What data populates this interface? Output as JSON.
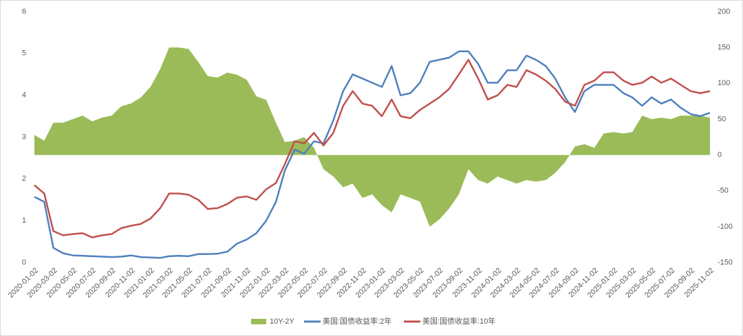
{
  "chart_data": {
    "type": "line",
    "x": [
      "2020-01-02",
      "2020-02-02",
      "2020-03-02",
      "2020-04-02",
      "2020-05-02",
      "2020-06-02",
      "2020-07-02",
      "2020-08-02",
      "2020-09-02",
      "2020-10-02",
      "2020-11-02",
      "2020-12-02",
      "2021-01-02",
      "2021-02-02",
      "2021-03-02",
      "2021-04-02",
      "2021-05-02",
      "2021-06-02",
      "2021-07-02",
      "2021-08-02",
      "2021-09-02",
      "2021-10-02",
      "2021-11-02",
      "2021-12-02",
      "2022-01-02",
      "2022-02-02",
      "2022-03-02",
      "2022-04-02",
      "2022-05-02",
      "2022-06-02",
      "2022-07-02",
      "2022-08-02",
      "2022-09-02",
      "2022-10-02",
      "2022-11-02",
      "2022-12-02",
      "2023-01-02",
      "2023-02-02",
      "2023-03-02",
      "2023-04-02",
      "2023-05-02",
      "2023-06-02",
      "2023-07-02",
      "2023-08-02",
      "2023-09-02",
      "2023-10-02",
      "2023-11-02",
      "2023-12-02",
      "2024-01-02",
      "2024-02-02",
      "2024-03-02",
      "2024-04-02",
      "2024-05-02",
      "2024-06-02",
      "2024-07-02",
      "2024-08-02",
      "2024-09-02",
      "2024-10-02",
      "2024-11-02",
      "2024-12-02",
      "2025-01-02",
      "2025-02-02",
      "2025-03-02",
      "2025-04-02",
      "2025-05-02",
      "2025-06-02",
      "2025-07-02",
      "2025-08-02",
      "2025-09-02",
      "2025-10-02",
      "2025-11-02"
    ],
    "xlim": [
      "2020-01-02",
      "2025-11-02"
    ],
    "xticks": [
      "2020-01-02",
      "2020-03-02",
      "2020-05-02",
      "2020-07-02",
      "2020-09-02",
      "2020-11-02",
      "2021-01-02",
      "2021-03-02",
      "2021-05-02",
      "2021-07-02",
      "2021-09-02",
      "2021-11-02",
      "2022-01-02",
      "2022-03-02",
      "2022-05-02",
      "2022-07-02",
      "2022-09-02",
      "2022-11-02",
      "2023-01-02",
      "2023-03-02",
      "2023-05-02",
      "2023-07-02",
      "2023-09-02",
      "2023-11-02",
      "2024-01-02",
      "2024-03-02",
      "2024-05-02",
      "2024-07-02",
      "2024-09-02",
      "2024-11-02",
      "2025-01-02",
      "2025-03-02",
      "2025-05-02",
      "2025-07-02",
      "2025-09-02",
      "2025-11-02"
    ],
    "ylim": [
      0,
      6
    ],
    "yticks": [
      0,
      1,
      2,
      3,
      4,
      5,
      6
    ],
    "y2lim": [
      -150,
      200
    ],
    "y2ticks": [
      -150,
      -100,
      -50,
      0,
      50,
      100,
      150,
      200
    ],
    "series": [
      {
        "name": "10Y-2Y",
        "type": "area",
        "axis": "y2",
        "color": "#9bbb59",
        "values": [
          28,
          20,
          45,
          45,
          50,
          55,
          47,
          52,
          55,
          68,
          72,
          80,
          95,
          120,
          150,
          150,
          148,
          130,
          110,
          108,
          115,
          112,
          105,
          82,
          77,
          45,
          18,
          20,
          25,
          10,
          -20,
          -30,
          -45,
          -40,
          -60,
          -55,
          -70,
          -80,
          -55,
          -60,
          -65,
          -100,
          -90,
          -75,
          -55,
          -20,
          -35,
          -40,
          -30,
          -35,
          -40,
          -35,
          -37,
          -35,
          -25,
          -10,
          12,
          15,
          10,
          30,
          32,
          30,
          32,
          55,
          50,
          52,
          50,
          55,
          55,
          55,
          52
        ]
      },
      {
        "name": "美国:国债收益率:2年",
        "color": "#4f81bd",
        "values": [
          1.57,
          1.45,
          0.35,
          0.22,
          0.17,
          0.16,
          0.15,
          0.14,
          0.13,
          0.14,
          0.17,
          0.13,
          0.12,
          0.11,
          0.15,
          0.16,
          0.15,
          0.2,
          0.2,
          0.21,
          0.26,
          0.45,
          0.55,
          0.7,
          1.0,
          1.45,
          2.2,
          2.7,
          2.6,
          2.9,
          2.85,
          3.4,
          4.1,
          4.5,
          4.4,
          4.3,
          4.2,
          4.7,
          4.0,
          4.05,
          4.3,
          4.8,
          4.85,
          4.9,
          5.05,
          5.05,
          4.75,
          4.3,
          4.3,
          4.6,
          4.6,
          4.95,
          4.85,
          4.7,
          4.4,
          3.95,
          3.6,
          4.1,
          4.25,
          4.25,
          4.25,
          4.05,
          3.95,
          3.75,
          3.95,
          3.8,
          3.9,
          3.7,
          3.55,
          3.5,
          3.58
        ]
      },
      {
        "name": "美国:国债收益率:10年",
        "color": "#c0504d",
        "values": [
          1.85,
          1.65,
          0.75,
          0.65,
          0.68,
          0.7,
          0.6,
          0.65,
          0.68,
          0.82,
          0.88,
          0.92,
          1.05,
          1.3,
          1.65,
          1.65,
          1.62,
          1.5,
          1.28,
          1.3,
          1.4,
          1.55,
          1.58,
          1.5,
          1.75,
          1.9,
          2.35,
          2.9,
          2.85,
          3.1,
          2.8,
          3.1,
          3.75,
          4.1,
          3.8,
          3.75,
          3.5,
          3.9,
          3.5,
          3.45,
          3.65,
          3.8,
          3.95,
          4.15,
          4.5,
          4.85,
          4.4,
          3.9,
          4.0,
          4.25,
          4.2,
          4.6,
          4.5,
          4.35,
          4.15,
          3.85,
          3.75,
          4.25,
          4.35,
          4.55,
          4.55,
          4.35,
          4.25,
          4.3,
          4.45,
          4.3,
          4.4,
          4.25,
          4.1,
          4.05,
          4.1
        ]
      }
    ]
  }
}
